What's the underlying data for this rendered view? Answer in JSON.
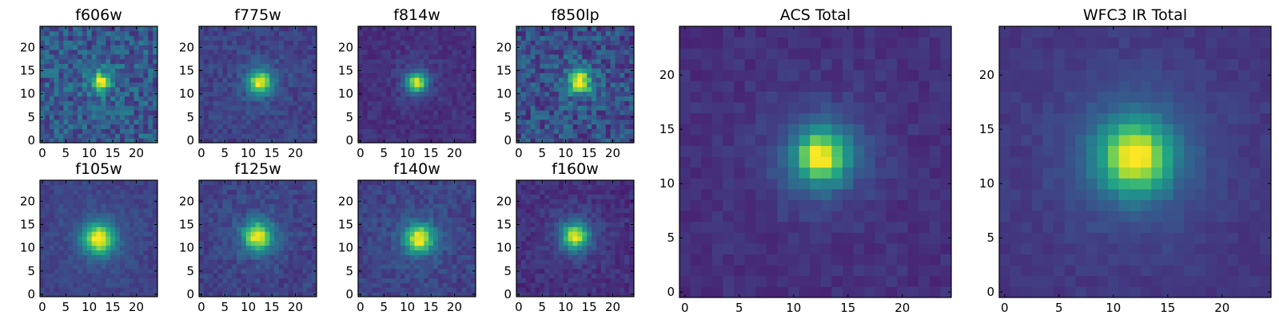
{
  "chart_data": [
    {
      "type": "heatmap",
      "title": "f606w",
      "peak": [
        12.5,
        12.5
      ],
      "sigma": 1.3,
      "noise": 0.3,
      "base": 0.28,
      "skew": 0.0,
      "xticks": [
        0,
        5,
        10,
        15,
        20
      ],
      "yticks": [
        0,
        5,
        10,
        15,
        20
      ],
      "xlim": [
        -0.5,
        24.5
      ],
      "ylim": [
        -0.5,
        24.5
      ],
      "grid": false,
      "colormap": "viridis"
    },
    {
      "type": "heatmap",
      "title": "f775w",
      "peak": [
        12.5,
        12.5
      ],
      "sigma": 1.6,
      "noise": 0.14,
      "base": 0.2,
      "skew": 0.0,
      "xticks": [
        0,
        5,
        10,
        15,
        20
      ],
      "yticks": [
        0,
        5,
        10,
        15,
        20
      ],
      "xlim": [
        -0.5,
        24.5
      ],
      "ylim": [
        -0.5,
        24.5
      ],
      "grid": false,
      "colormap": "viridis"
    },
    {
      "type": "heatmap",
      "title": "f814w",
      "peak": [
        12.0,
        12.5
      ],
      "sigma": 1.4,
      "noise": 0.1,
      "base": 0.14,
      "skew": 0.0,
      "xticks": [
        0,
        5,
        10,
        15,
        20
      ],
      "yticks": [
        0,
        5,
        10,
        15,
        20
      ],
      "xlim": [
        -0.5,
        24.5
      ],
      "ylim": [
        -0.5,
        24.5
      ],
      "grid": false,
      "colormap": "viridis"
    },
    {
      "type": "heatmap",
      "title": "f850lp",
      "peak": [
        13.0,
        12.5
      ],
      "sigma": 1.6,
      "noise": 0.3,
      "base": 0.24,
      "skew": 0.0,
      "xticks": [
        0,
        5,
        10,
        15,
        20
      ],
      "yticks": [
        0,
        5,
        10,
        15,
        20
      ],
      "xlim": [
        -0.5,
        24.5
      ],
      "ylim": [
        -0.5,
        24.5
      ],
      "grid": false,
      "colormap": "viridis"
    },
    {
      "type": "heatmap",
      "title": "f105w",
      "peak": [
        12.0,
        12.0
      ],
      "sigma": 2.2,
      "noise": 0.1,
      "base": 0.2,
      "skew": 0.0,
      "xticks": [
        0,
        5,
        10,
        15,
        20
      ],
      "yticks": [
        0,
        5,
        10,
        15,
        20
      ],
      "xlim": [
        -0.5,
        24.5
      ],
      "ylim": [
        -0.5,
        24.5
      ],
      "grid": false,
      "colormap": "viridis"
    },
    {
      "type": "heatmap",
      "title": "f125w",
      "peak": [
        12.0,
        12.5
      ],
      "sigma": 2.0,
      "noise": 0.14,
      "base": 0.2,
      "skew": 0.0,
      "xticks": [
        0,
        5,
        10,
        15,
        20
      ],
      "yticks": [
        0,
        5,
        10,
        15,
        20
      ],
      "xlim": [
        -0.5,
        24.5
      ],
      "ylim": [
        -0.5,
        24.5
      ],
      "grid": false,
      "colormap": "viridis"
    },
    {
      "type": "heatmap",
      "title": "f140w",
      "peak": [
        12.5,
        12.0
      ],
      "sigma": 2.0,
      "noise": 0.14,
      "base": 0.2,
      "skew": 0.0,
      "xticks": [
        0,
        5,
        10,
        15,
        20
      ],
      "yticks": [
        0,
        5,
        10,
        15,
        20
      ],
      "xlim": [
        -0.5,
        24.5
      ],
      "ylim": [
        -0.5,
        24.5
      ],
      "grid": false,
      "colormap": "viridis"
    },
    {
      "type": "heatmap",
      "title": "f160w",
      "peak": [
        12.0,
        12.5
      ],
      "sigma": 1.9,
      "noise": 0.12,
      "base": 0.14,
      "skew": 0.0,
      "xticks": [
        0,
        5,
        10,
        15,
        20
      ],
      "yticks": [
        0,
        5,
        10,
        15,
        20
      ],
      "xlim": [
        -0.5,
        24.5
      ],
      "ylim": [
        -0.5,
        24.5
      ],
      "grid": false,
      "colormap": "viridis"
    },
    {
      "type": "heatmap",
      "title": "ACS Total",
      "peak": [
        12.5,
        12.5
      ],
      "sigma": 1.6,
      "noise": 0.08,
      "base": 0.14,
      "skew": 0.0,
      "xticks": [
        0,
        5,
        10,
        15,
        20
      ],
      "yticks": [
        0,
        5,
        10,
        15,
        20
      ],
      "xlim": [
        -0.5,
        24.5
      ],
      "ylim": [
        -0.5,
        24.5
      ],
      "grid": false,
      "colormap": "viridis"
    },
    {
      "type": "heatmap",
      "title": "WFC3 IR Total",
      "peak": [
        12.0,
        12.5
      ],
      "sigma": 2.2,
      "noise": 0.06,
      "base": 0.16,
      "skew": 0.0,
      "xticks": [
        0,
        5,
        10,
        15,
        20
      ],
      "yticks": [
        0,
        5,
        10,
        15,
        20
      ],
      "xlim": [
        -0.5,
        24.5
      ],
      "ylim": [
        -0.5,
        24.5
      ],
      "grid": false,
      "colormap": "viridis"
    }
  ]
}
